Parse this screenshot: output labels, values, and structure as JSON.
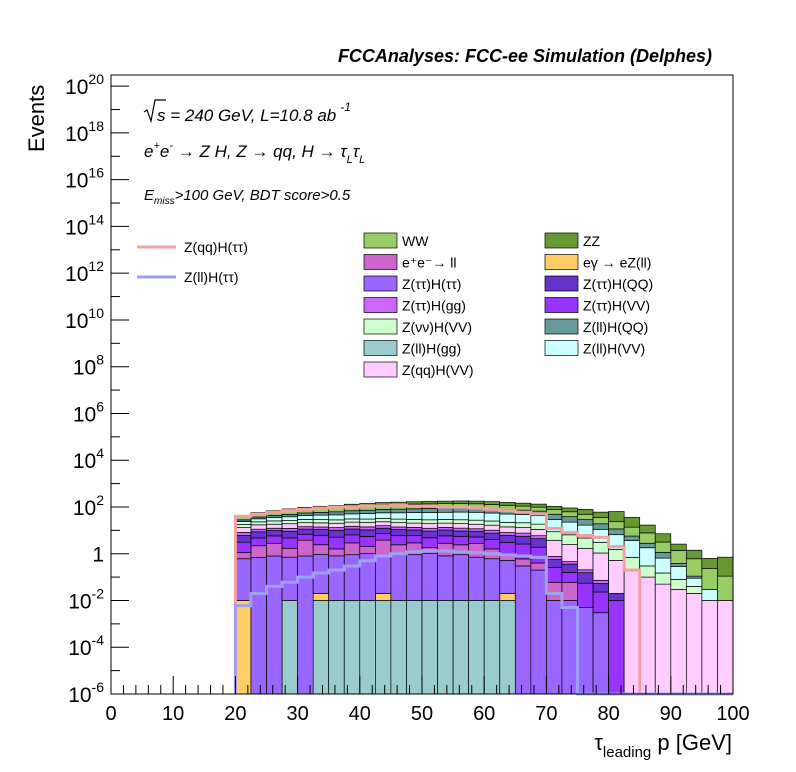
{
  "chart_data": {
    "type": "bar",
    "stacked": true,
    "log_y": true,
    "title": "FCCAnalyses: FCC-ee Simulation (Delphes)",
    "xlabel": "τ_leading p [GeV]",
    "ylabel": "Events",
    "xlim": [
      0,
      100
    ],
    "ylim": [
      1e-06,
      3e+20
    ],
    "grid": false,
    "x_ticks": [
      "0",
      "10",
      "20",
      "30",
      "40",
      "50",
      "60",
      "70",
      "80",
      "90",
      "100"
    ],
    "y_ticks": [
      {
        "base": "10",
        "exp": "-6",
        "value": 1e-06
      },
      {
        "base": "10",
        "exp": "-4",
        "value": 0.0001
      },
      {
        "base": "10",
        "exp": "-2",
        "value": 0.01
      },
      {
        "base": "1",
        "exp": "",
        "value": 1
      },
      {
        "base": "10",
        "exp": "2",
        "value": 100.0
      },
      {
        "base": "10",
        "exp": "4",
        "value": 10000.0
      },
      {
        "base": "10",
        "exp": "6",
        "value": 1000000.0
      },
      {
        "base": "10",
        "exp": "8",
        "value": 100000000.0
      },
      {
        "base": "10",
        "exp": "10",
        "value": 10000000000.0
      },
      {
        "base": "10",
        "exp": "12",
        "value": 1000000000000.0
      },
      {
        "base": "10",
        "exp": "14",
        "value": 100000000000000.0
      },
      {
        "base": "10",
        "exp": "16",
        "value": 1e+16
      },
      {
        "base": "10",
        "exp": "18",
        "value": 1e+18
      },
      {
        "base": "10",
        "exp": "20",
        "value": 1e+20
      }
    ],
    "annotations": {
      "sqrt_s": "s = 240 GeV, L=10.8 ab",
      "lumi_exp": "-1",
      "process_e1": "e",
      "process_sup1": "+",
      "process_e2": "e",
      "process_sup2": "-",
      "process_rest": " → Z H, Z  → qq, H  → τ",
      "process_L": "L",
      "process_tau2": "τ",
      "cut_E": "E",
      "cut_sub": "miss",
      "cut_rest": ">100 GeV, BDT score>0.5"
    },
    "legend_lines": [
      {
        "name": "Z(qq)H(ττ)",
        "color": "#f2a0a0"
      },
      {
        "name": "Z(ll)H(ττ)",
        "color": "#a0a0f2"
      }
    ],
    "legend_fills": [
      {
        "name": "WW",
        "color": "#99cc66"
      },
      {
        "name": "ZZ",
        "color": "#669933"
      },
      {
        "name": "e⁺e⁻→ ll",
        "color": "#cc66cc"
      },
      {
        "name": "eγ → eZ(ll)",
        "color": "#ffcc66"
      },
      {
        "name": "Z(ττ)H(ττ)",
        "color": "#9966ff"
      },
      {
        "name": "Z(ττ)H(QQ)",
        "color": "#6633cc"
      },
      {
        "name": "Z(ττ)H(gg)",
        "color": "#cc66ff"
      },
      {
        "name": "Z(ττ)H(VV)",
        "color": "#9933ff"
      },
      {
        "name": "Z(νν)H(VV)",
        "color": "#ccffcc"
      },
      {
        "name": "Z(ll)H(QQ)",
        "color": "#669999"
      },
      {
        "name": "Z(ll)H(gg)",
        "color": "#99cccc"
      },
      {
        "name": "Z(ll)H(VV)",
        "color": "#ccffff"
      },
      {
        "name": "Z(qq)H(VV)",
        "color": "#ffccff"
      }
    ],
    "bin_edges_start": 20,
    "bin_width": 2.5,
    "stack": [
      {
        "name": "Z(ll)H(gg)",
        "color": "#99cccc",
        "values": [
          0,
          0,
          0,
          0.01,
          0,
          0.01,
          0.01,
          0.01,
          0.01,
          0.01,
          0.01,
          0.01,
          0.01,
          0.01,
          0.01,
          0.01,
          0.01,
          0.01,
          0,
          0,
          0,
          0,
          0,
          0,
          0,
          0,
          0,
          0,
          0,
          0,
          0,
          0
        ]
      },
      {
        "name": "eγ → eZ(ll)",
        "color": "#ffcc66",
        "values": [
          0.01,
          0,
          0,
          0,
          0,
          0.01,
          0,
          0,
          0,
          0.01,
          0,
          0,
          0,
          0,
          0,
          0,
          0,
          0.01,
          0,
          0,
          0,
          0,
          0,
          0,
          0,
          0,
          0,
          0,
          0,
          0,
          0,
          0
        ]
      },
      {
        "name": "Z(ττ)H(ττ)",
        "color": "#9966ff",
        "values": [
          0.6,
          0.7,
          0.8,
          0.7,
          0.8,
          0.9,
          0.8,
          0.9,
          1.0,
          0.8,
          0.9,
          0.9,
          1.0,
          0.8,
          0.9,
          0.7,
          0.6,
          0.5,
          0.3,
          0.2,
          0.01,
          0.01,
          0.005,
          0.003,
          0,
          0,
          0,
          0,
          0,
          0,
          0,
          0
        ]
      },
      {
        "name": "e⁺e⁻→ ll",
        "color": "#cc66cc",
        "values": [
          0.5,
          1.5,
          2,
          1,
          3,
          1.5,
          0.8,
          2,
          1,
          3,
          1.5,
          2,
          0.8,
          2,
          1.5,
          2,
          1,
          0.5,
          0.3,
          0.2,
          0.05,
          0.05,
          0,
          0,
          0,
          0,
          0,
          0,
          0,
          0,
          0,
          0
        ]
      },
      {
        "name": "Z(ττ)H(VV)",
        "color": "#9933ff",
        "values": [
          2,
          2.5,
          3,
          3,
          3,
          3.5,
          3.5,
          3.5,
          3.5,
          3.5,
          3.5,
          3,
          3,
          3,
          3,
          2.5,
          2.5,
          2,
          2,
          1.5,
          0.2,
          0.1,
          0.05,
          0.02,
          0.01,
          0,
          0,
          0,
          0,
          0,
          0,
          0
        ]
      },
      {
        "name": "Z(ττ)H(QQ)",
        "color": "#6633cc",
        "values": [
          3,
          4,
          4,
          4.5,
          4.5,
          5,
          5,
          5,
          5,
          5,
          5,
          4.5,
          4.5,
          4.5,
          4,
          4,
          3.5,
          3,
          3,
          2.5,
          0.3,
          0.2,
          0.1,
          0.03,
          0.01,
          0,
          0,
          0,
          0,
          0,
          0,
          0
        ]
      },
      {
        "name": "Z(ττ)H(gg)",
        "color": "#cc66ff",
        "values": [
          2,
          2.5,
          2.5,
          3,
          3,
          3,
          3,
          3.5,
          3.5,
          3.5,
          3,
          3,
          3,
          3,
          3,
          2.5,
          2.5,
          2,
          2,
          1.5,
          0.2,
          0.1,
          0.05,
          0.02,
          0,
          0,
          0,
          0,
          0,
          0,
          0,
          0
        ]
      },
      {
        "name": "Z(qq)H(VV)",
        "color": "#ffccff",
        "values": [
          5,
          6,
          6,
          7,
          7,
          7,
          7,
          7.5,
          7.5,
          7.5,
          7.5,
          7,
          7,
          7,
          7,
          6.5,
          6.5,
          6,
          5.5,
          5,
          3,
          2,
          1.5,
          1,
          0.5,
          0.2,
          0.1,
          0.05,
          0.03,
          0.02,
          0.01,
          0.01
        ]
      },
      {
        "name": "Z(νν)H(VV)",
        "color": "#ccffcc",
        "values": [
          5,
          6,
          7,
          7,
          8,
          8,
          8,
          8.5,
          9,
          9,
          9,
          9,
          9,
          9,
          9,
          9,
          8.5,
          8,
          8,
          7.5,
          5,
          4,
          3,
          2,
          1,
          0.5,
          0.2,
          0.1,
          0.05,
          0.02,
          0,
          0
        ]
      },
      {
        "name": "Z(ll)H(VV)",
        "color": "#ccffff",
        "values": [
          6,
          8,
          10,
          12,
          14,
          16,
          18,
          20,
          22,
          24,
          26,
          28,
          30,
          30,
          32,
          32,
          30,
          28,
          26,
          24,
          20,
          16,
          12,
          8,
          5,
          3,
          1.5,
          0.5,
          0.2,
          0.05,
          0.02,
          0
        ]
      },
      {
        "name": "Z(ll)H(QQ)",
        "color": "#669999",
        "values": [
          4,
          6,
          8,
          10,
          12,
          14,
          16,
          18,
          20,
          22,
          24,
          26,
          28,
          30,
          32,
          32,
          30,
          28,
          26,
          24,
          20,
          16,
          12,
          8,
          5,
          2,
          1,
          0.5,
          0.1,
          0.02,
          0,
          0
        ]
      },
      {
        "name": "WW",
        "color": "#99cc66",
        "values": [
          10,
          14,
          18,
          22,
          26,
          30,
          34,
          38,
          42,
          46,
          48,
          50,
          50,
          50,
          48,
          46,
          44,
          40,
          36,
          32,
          28,
          24,
          20,
          16,
          12,
          8,
          5,
          2,
          1,
          0.5,
          0.2,
          0.1
        ]
      },
      {
        "name": "ZZ",
        "color": "#669933",
        "values": [
          5,
          7,
          9,
          12,
          15,
          18,
          20,
          24,
          26,
          30,
          32,
          34,
          36,
          38,
          40,
          40,
          40,
          38,
          36,
          34,
          30,
          28,
          30,
          25,
          40,
          22,
          9,
          4,
          1.2,
          0.8,
          0.4,
          0.6
        ]
      }
    ],
    "overlay_lines": [
      {
        "name": "Z(qq)H(ττ)",
        "color": "#f2a0a0",
        "values": [
          40,
          50,
          60,
          70,
          80,
          90,
          100,
          100,
          110,
          110,
          120,
          110,
          110,
          100,
          100,
          90,
          80,
          70,
          60,
          50,
          12,
          8,
          6,
          5,
          2,
          0.2,
          0,
          0,
          0,
          0,
          0,
          0
        ]
      },
      {
        "name": "Z(ll)H(ττ)",
        "color": "#a0a0f2",
        "values": [
          0.006,
          0.02,
          0.04,
          0.06,
          0.1,
          0.15,
          0.2,
          0.3,
          0.5,
          0.8,
          1.0,
          1.2,
          1.3,
          1.3,
          1.2,
          1.1,
          1.0,
          0.9,
          0.8,
          0.7,
          0.02,
          0.005,
          0,
          0,
          0,
          0,
          0,
          0,
          0,
          0,
          0,
          0
        ]
      }
    ]
  }
}
